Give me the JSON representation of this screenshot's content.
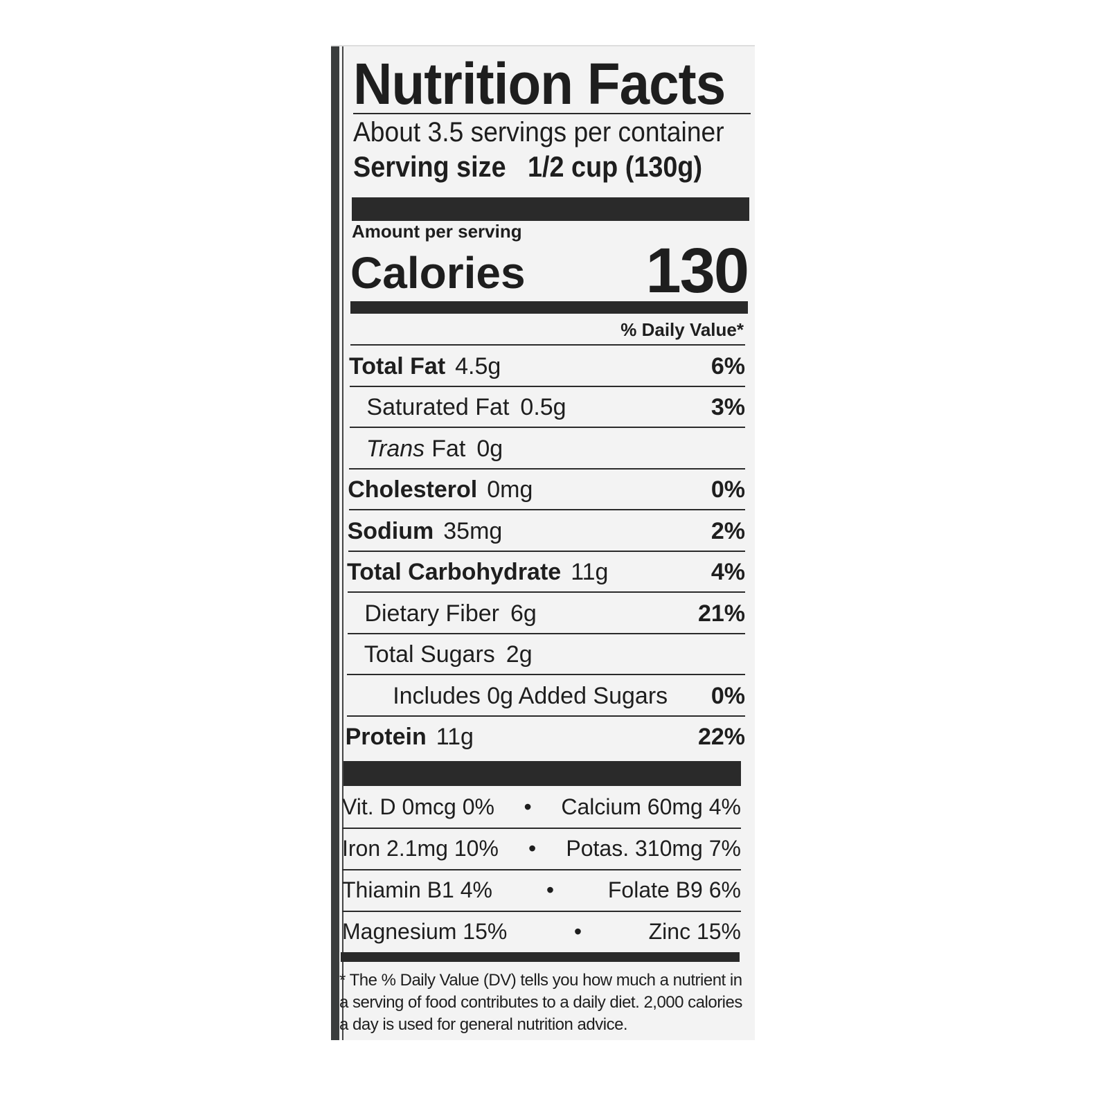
{
  "title": "Nutrition Facts",
  "servings_per_container": "About 3.5 servings per container",
  "serving_size_label": "Serving size",
  "serving_size_value": "1/2 cup (130g)",
  "amount_per_serving": "Amount per serving",
  "calories_label": "Calories",
  "calories_value": "130",
  "daily_value_header": "% Daily Value*",
  "nutrients": [
    {
      "name": "Total Fat",
      "amount": "4.5g",
      "dv": "6%",
      "bold": true,
      "indent": 0
    },
    {
      "name": "Saturated Fat",
      "amount": "0.5g",
      "dv": "3%",
      "bold": false,
      "indent": 1
    },
    {
      "name": "Trans",
      "name_suffix": "Fat",
      "amount": "0g",
      "dv": "",
      "bold": false,
      "indent": 1
    },
    {
      "name": "Cholesterol",
      "amount": "0mg",
      "dv": "0%",
      "bold": true,
      "indent": 0
    },
    {
      "name": "Sodium",
      "amount": "35mg",
      "dv": "2%",
      "bold": true,
      "indent": 0
    },
    {
      "name": "Total Carbohydrate",
      "amount": "11g",
      "dv": "4%",
      "bold": true,
      "indent": 0
    },
    {
      "name": "Dietary Fiber",
      "amount": "6g",
      "dv": "21%",
      "bold": false,
      "indent": 1
    },
    {
      "name": "Total Sugars",
      "amount": "2g",
      "dv": "",
      "bold": false,
      "indent": 1
    },
    {
      "name": "Includes 0g Added Sugars",
      "amount": "",
      "dv": "0%",
      "bold": false,
      "indent": 2
    },
    {
      "name": "Protein",
      "amount": "11g",
      "dv": "22%",
      "bold": true,
      "indent": 0
    }
  ],
  "vitamins": [
    {
      "left": "Vit. D 0mcg 0%",
      "right": "Calcium 60mg 4%"
    },
    {
      "left": "Iron 2.1mg 10%",
      "right": "Potas. 310mg 7%"
    },
    {
      "left": "Thiamin B1 4%",
      "right": "Folate B9 6%"
    },
    {
      "left": "Magnesium 15%",
      "right": "Zinc 15%"
    }
  ],
  "bullet": "•",
  "footnote": "* The % Daily Value (DV) tells you how much a nutrient in a serving of food contributes to a daily diet. 2,000 calories a day is used for general nutrition advice."
}
